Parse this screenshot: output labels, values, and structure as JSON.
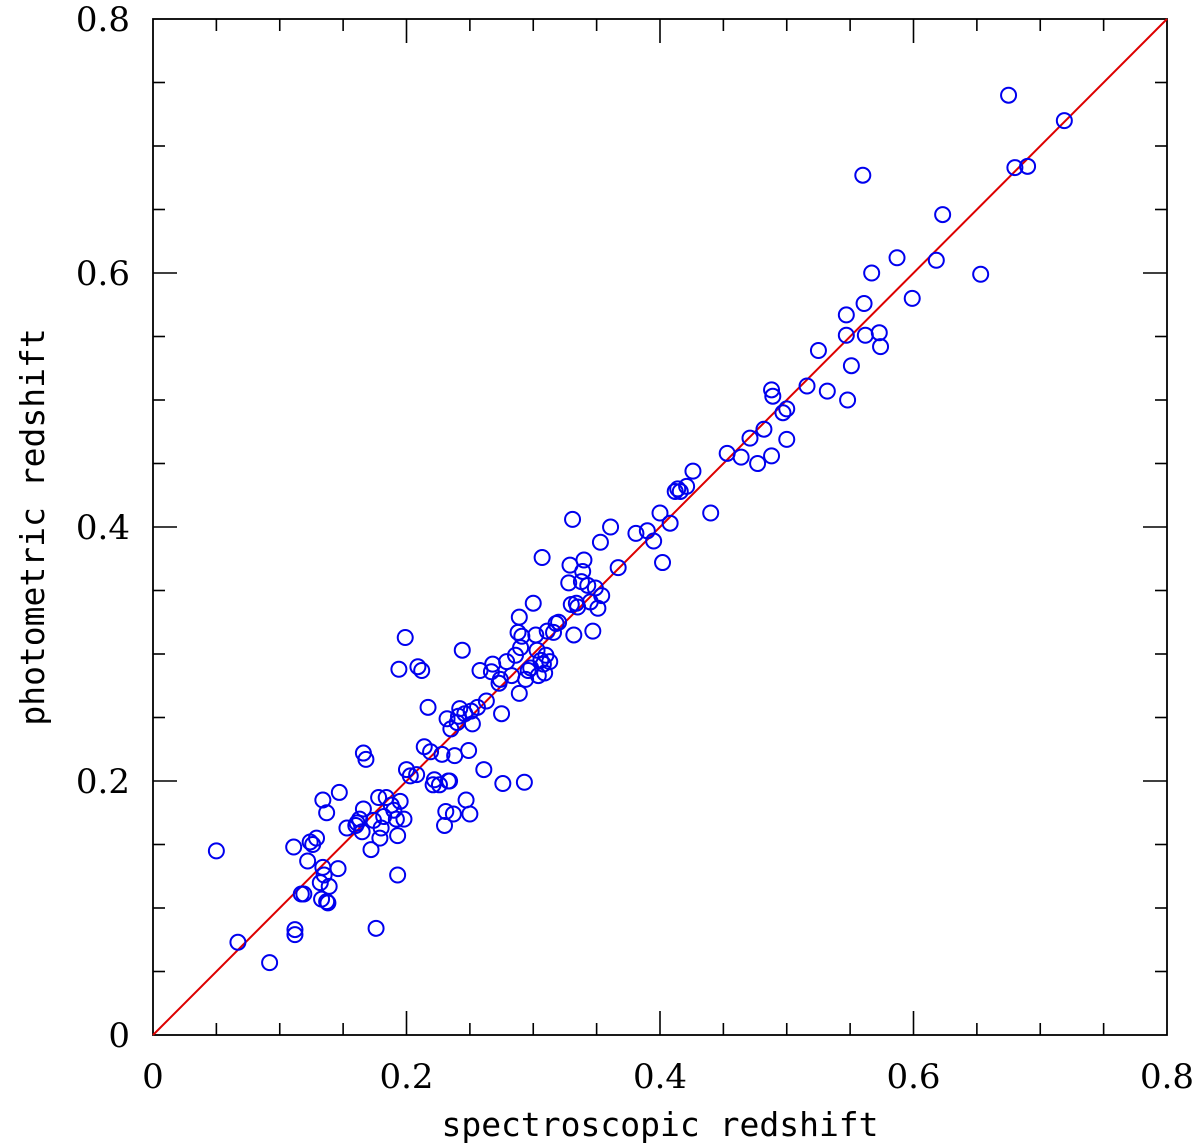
{
  "chart_data": {
    "type": "scatter",
    "title": "",
    "xlabel": "spectroscopic redshift",
    "ylabel": "photometric redshift",
    "xlim": [
      0,
      0.8
    ],
    "ylim": [
      0,
      0.8
    ],
    "x_tick_labels": [
      "0",
      "0.2",
      "0.4",
      "0.6",
      "0.8"
    ],
    "y_tick_labels": [
      "0",
      "0.2",
      "0.4",
      "0.6",
      "0.8"
    ],
    "x_ticks": [
      0,
      0.2,
      0.4,
      0.6,
      0.8
    ],
    "y_ticks": [
      0,
      0.2,
      0.4,
      0.6,
      0.8
    ],
    "minor_step": 0.05,
    "grid": false,
    "marker": "open-circle",
    "colors": {
      "points": "#0000ee",
      "reference_line": "#dd0000",
      "axes": "#000000"
    },
    "reference_line": {
      "label": "",
      "x": [
        0,
        0.8
      ],
      "y": [
        0,
        0.8
      ]
    },
    "series": [
      {
        "values": [
          [
            0.05,
            0.145
          ],
          [
            0.067,
            0.073
          ],
          [
            0.092,
            0.057
          ],
          [
            0.111,
            0.148
          ],
          [
            0.112,
            0.083
          ],
          [
            0.112,
            0.079
          ],
          [
            0.117,
            0.111
          ],
          [
            0.119,
            0.111
          ],
          [
            0.122,
            0.137
          ],
          [
            0.124,
            0.152
          ],
          [
            0.126,
            0.15
          ],
          [
            0.129,
            0.155
          ],
          [
            0.132,
            0.12
          ],
          [
            0.133,
            0.107
          ],
          [
            0.134,
            0.132
          ],
          [
            0.134,
            0.185
          ],
          [
            0.135,
            0.126
          ],
          [
            0.137,
            0.105
          ],
          [
            0.137,
            0.175
          ],
          [
            0.138,
            0.104
          ],
          [
            0.139,
            0.117
          ],
          [
            0.146,
            0.131
          ],
          [
            0.147,
            0.191
          ],
          [
            0.153,
            0.163
          ],
          [
            0.16,
            0.165
          ],
          [
            0.161,
            0.167
          ],
          [
            0.163,
            0.17
          ],
          [
            0.165,
            0.16
          ],
          [
            0.166,
            0.222
          ],
          [
            0.166,
            0.178
          ],
          [
            0.168,
            0.217
          ],
          [
            0.172,
            0.146
          ],
          [
            0.174,
            0.169
          ],
          [
            0.176,
            0.084
          ],
          [
            0.178,
            0.187
          ],
          [
            0.179,
            0.155
          ],
          [
            0.18,
            0.163
          ],
          [
            0.182,
            0.172
          ],
          [
            0.184,
            0.187
          ],
          [
            0.188,
            0.181
          ],
          [
            0.19,
            0.177
          ],
          [
            0.192,
            0.17
          ],
          [
            0.193,
            0.126
          ],
          [
            0.193,
            0.157
          ],
          [
            0.194,
            0.288
          ],
          [
            0.195,
            0.184
          ],
          [
            0.198,
            0.17
          ],
          [
            0.199,
            0.313
          ],
          [
            0.2,
            0.209
          ],
          [
            0.203,
            0.204
          ],
          [
            0.208,
            0.205
          ],
          [
            0.209,
            0.29
          ],
          [
            0.212,
            0.287
          ],
          [
            0.214,
            0.227
          ],
          [
            0.217,
            0.258
          ],
          [
            0.219,
            0.223
          ],
          [
            0.221,
            0.197
          ],
          [
            0.222,
            0.201
          ],
          [
            0.226,
            0.197
          ],
          [
            0.228,
            0.221
          ],
          [
            0.23,
            0.165
          ],
          [
            0.231,
            0.176
          ],
          [
            0.232,
            0.249
          ],
          [
            0.233,
            0.2
          ],
          [
            0.234,
            0.2
          ],
          [
            0.235,
            0.241
          ],
          [
            0.237,
            0.174
          ],
          [
            0.238,
            0.22
          ],
          [
            0.24,
            0.246
          ],
          [
            0.241,
            0.251
          ],
          [
            0.242,
            0.257
          ],
          [
            0.244,
            0.303
          ],
          [
            0.246,
            0.253
          ],
          [
            0.247,
            0.185
          ],
          [
            0.249,
            0.224
          ],
          [
            0.25,
            0.174
          ],
          [
            0.251,
            0.255
          ],
          [
            0.252,
            0.245
          ],
          [
            0.256,
            0.258
          ],
          [
            0.258,
            0.287
          ],
          [
            0.261,
            0.209
          ],
          [
            0.263,
            0.263
          ],
          [
            0.267,
            0.286
          ],
          [
            0.268,
            0.292
          ],
          [
            0.273,
            0.277
          ],
          [
            0.274,
            0.28
          ],
          [
            0.275,
            0.253
          ],
          [
            0.276,
            0.198
          ],
          [
            0.279,
            0.294
          ],
          [
            0.283,
            0.283
          ],
          [
            0.286,
            0.299
          ],
          [
            0.288,
            0.317
          ],
          [
            0.289,
            0.269
          ],
          [
            0.289,
            0.329
          ],
          [
            0.29,
            0.305
          ],
          [
            0.291,
            0.314
          ],
          [
            0.293,
            0.199
          ],
          [
            0.294,
            0.28
          ],
          [
            0.296,
            0.287
          ],
          [
            0.298,
            0.289
          ],
          [
            0.3,
            0.34
          ],
          [
            0.302,
            0.315
          ],
          [
            0.303,
            0.303
          ],
          [
            0.304,
            0.283
          ],
          [
            0.306,
            0.295
          ],
          [
            0.307,
            0.376
          ],
          [
            0.308,
            0.292
          ],
          [
            0.309,
            0.285
          ],
          [
            0.31,
            0.299
          ],
          [
            0.311,
            0.318
          ],
          [
            0.313,
            0.294
          ],
          [
            0.316,
            0.317
          ],
          [
            0.318,
            0.324
          ],
          [
            0.32,
            0.325
          ],
          [
            0.328,
            0.356
          ],
          [
            0.329,
            0.37
          ],
          [
            0.33,
            0.339
          ],
          [
            0.331,
            0.406
          ],
          [
            0.332,
            0.315
          ],
          [
            0.334,
            0.34
          ],
          [
            0.335,
            0.337
          ],
          [
            0.338,
            0.357
          ],
          [
            0.339,
            0.365
          ],
          [
            0.34,
            0.374
          ],
          [
            0.343,
            0.354
          ],
          [
            0.345,
            0.341
          ],
          [
            0.347,
            0.318
          ],
          [
            0.349,
            0.352
          ],
          [
            0.351,
            0.336
          ],
          [
            0.353,
            0.388
          ],
          [
            0.354,
            0.346
          ],
          [
            0.361,
            0.4
          ],
          [
            0.367,
            0.368
          ],
          [
            0.381,
            0.395
          ],
          [
            0.39,
            0.397
          ],
          [
            0.395,
            0.389
          ],
          [
            0.4,
            0.411
          ],
          [
            0.402,
            0.372
          ],
          [
            0.408,
            0.403
          ],
          [
            0.412,
            0.428
          ],
          [
            0.414,
            0.43
          ],
          [
            0.416,
            0.428
          ],
          [
            0.421,
            0.432
          ],
          [
            0.426,
            0.444
          ],
          [
            0.44,
            0.411
          ],
          [
            0.453,
            0.458
          ],
          [
            0.464,
            0.455
          ],
          [
            0.471,
            0.47
          ],
          [
            0.477,
            0.45
          ],
          [
            0.482,
            0.477
          ],
          [
            0.488,
            0.456
          ],
          [
            0.488,
            0.508
          ],
          [
            0.489,
            0.503
          ],
          [
            0.497,
            0.49
          ],
          [
            0.5,
            0.493
          ],
          [
            0.5,
            0.469
          ],
          [
            0.516,
            0.511
          ],
          [
            0.525,
            0.539
          ],
          [
            0.532,
            0.507
          ],
          [
            0.547,
            0.567
          ],
          [
            0.547,
            0.551
          ],
          [
            0.548,
            0.5
          ],
          [
            0.551,
            0.527
          ],
          [
            0.56,
            0.677
          ],
          [
            0.561,
            0.576
          ],
          [
            0.562,
            0.551
          ],
          [
            0.567,
            0.6
          ],
          [
            0.573,
            0.553
          ],
          [
            0.574,
            0.542
          ],
          [
            0.587,
            0.612
          ],
          [
            0.599,
            0.58
          ],
          [
            0.618,
            0.61
          ],
          [
            0.623,
            0.646
          ],
          [
            0.653,
            0.599
          ],
          [
            0.675,
            0.74
          ],
          [
            0.68,
            0.683
          ],
          [
            0.69,
            0.684
          ],
          [
            0.719,
            0.72
          ]
        ]
      }
    ]
  }
}
